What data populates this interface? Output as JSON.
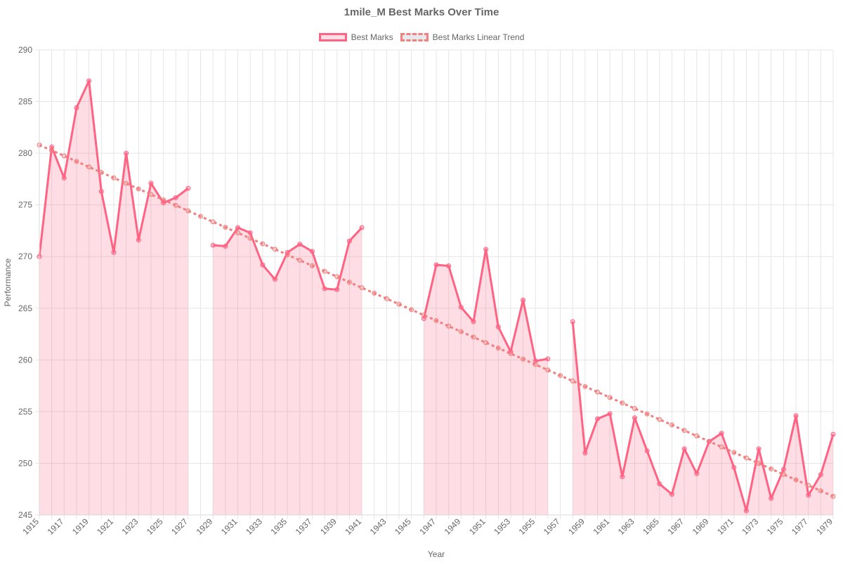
{
  "chart_data": {
    "type": "line",
    "title": "1mile_M Best Marks Over Time",
    "xlabel": "Year",
    "ylabel": "Performance",
    "ylim": [
      245,
      290
    ],
    "yticks": [
      245,
      250,
      255,
      260,
      265,
      270,
      275,
      280,
      285,
      290
    ],
    "x_range": [
      1915,
      1979
    ],
    "xtick_labels": [
      "1915",
      "1917",
      "1919",
      "1921",
      "1923",
      "1925",
      "1927",
      "1929",
      "1931",
      "1933",
      "1935",
      "1937",
      "1939",
      "1941",
      "1943",
      "1945",
      "1947",
      "1949",
      "1951",
      "1953",
      "1955",
      "1957",
      "1959",
      "1961",
      "1963",
      "1965",
      "1967",
      "1969",
      "1971",
      "1973",
      "1975",
      "1977",
      "1979"
    ],
    "grid": true,
    "legend_position": "top-center",
    "series": [
      {
        "name": "Best Marks",
        "color": "#ff6384",
        "fill": "rgba(255,99,132,0.22)",
        "x": [
          1915,
          1916,
          1917,
          1918,
          1919,
          1920,
          1921,
          1922,
          1923,
          1924,
          1925,
          1926,
          1927,
          1929,
          1930,
          1931,
          1932,
          1933,
          1934,
          1935,
          1936,
          1937,
          1938,
          1939,
          1940,
          1941,
          1946,
          1947,
          1948,
          1949,
          1950,
          1951,
          1952,
          1953,
          1954,
          1955,
          1956,
          1958,
          1959,
          1960,
          1961,
          1962,
          1963,
          1964,
          1965,
          1966,
          1967,
          1968,
          1969,
          1970,
          1971,
          1972,
          1973,
          1974,
          1975,
          1976,
          1977,
          1978,
          1979
        ],
        "y": [
          270.0,
          280.6,
          277.6,
          284.4,
          287.0,
          276.3,
          270.4,
          280.0,
          271.6,
          277.1,
          275.2,
          275.7,
          276.6,
          271.1,
          271.0,
          272.8,
          272.3,
          269.2,
          267.8,
          270.4,
          271.2,
          270.5,
          266.9,
          266.8,
          271.5,
          272.8,
          264.0,
          269.2,
          269.1,
          265.1,
          263.7,
          270.7,
          263.2,
          260.8,
          265.8,
          259.9,
          260.1,
          263.7,
          251.0,
          254.3,
          254.8,
          248.7,
          254.4,
          251.2,
          248.0,
          247.0,
          251.4,
          249.0,
          252.1,
          252.9,
          249.6,
          245.4,
          251.4,
          246.6,
          249.4,
          254.6,
          246.9,
          248.9,
          252.8
        ]
      },
      {
        "name": "Best Marks Linear Trend",
        "color": "#f08080",
        "x": [
          1915,
          1979
        ],
        "y": [
          280.8,
          246.8
        ]
      }
    ]
  }
}
